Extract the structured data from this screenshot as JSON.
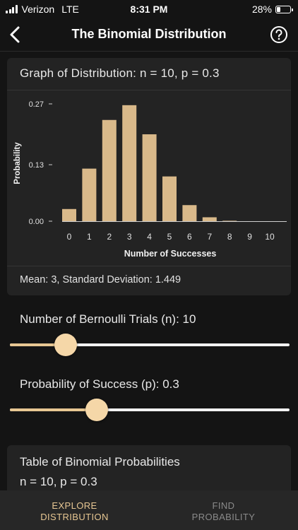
{
  "status_bar": {
    "carrier": "Verizon",
    "network": "LTE",
    "time": "8:31 PM",
    "battery": "28%",
    "battery_level": 0.28
  },
  "nav": {
    "title": "The Binomial Distribution",
    "back_icon": "chevron-left-icon",
    "help_icon": "question-circle-icon"
  },
  "graph_card": {
    "title": "Graph of Distribution: n = 10, p = 0.3",
    "stats": "Mean: 3, Standard Deviation: 1.449"
  },
  "chart_data": {
    "type": "bar",
    "categories": [
      "0",
      "1",
      "2",
      "3",
      "4",
      "5",
      "6",
      "7",
      "8",
      "9",
      "10"
    ],
    "values": [
      0.028,
      0.121,
      0.233,
      0.267,
      0.2,
      0.103,
      0.037,
      0.009,
      0.001,
      0.0001,
      0.0
    ],
    "xlabel": "Number of Successes",
    "ylabel": "Probability",
    "ytick_values": [
      0,
      0.13,
      0.27
    ],
    "ytick_labels": [
      "0.00",
      "0.13",
      "0.27"
    ],
    "ylim": [
      0,
      0.27
    ],
    "bar_color": "#d9b98a",
    "grid": false
  },
  "sliders": {
    "trials": {
      "label": "Number of Bernoulli Trials (n): 10",
      "fraction": 0.2
    },
    "probability": {
      "label": "Probability of Success (p): 0.3",
      "fraction": 0.31
    }
  },
  "table_card": {
    "title": "Table of Binomial Probabilities",
    "params": "n = 10, p = 0.3"
  },
  "tabs": [
    {
      "label_line1": "EXPLORE",
      "label_line2": "DISTRIBUTION",
      "active": true
    },
    {
      "label_line1": "FIND",
      "label_line2": "PROBABILITY",
      "active": false
    }
  ],
  "colors": {
    "accent": "#e7c793",
    "background": "#141414",
    "card": "#232323"
  }
}
